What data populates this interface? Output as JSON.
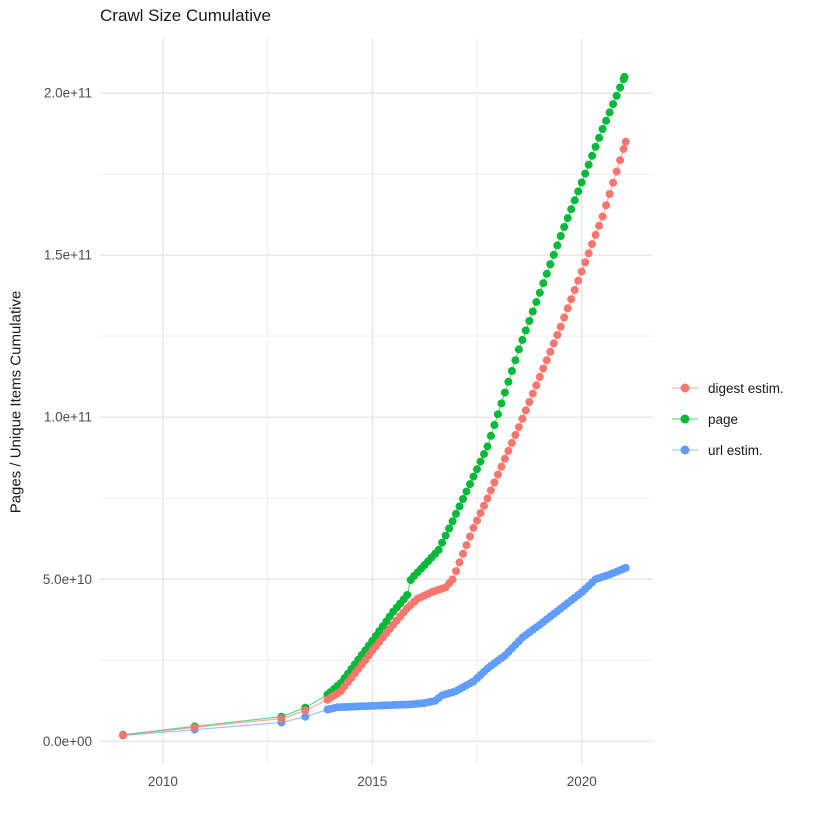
{
  "style": {
    "background": "#FFFFFF",
    "grid_major": "#E3E3E3",
    "grid_minor": "#EFEFEF",
    "axis_text_color": "#4D4D4D",
    "title_text_color": "#1A1A1A"
  },
  "chart_data": {
    "type": "scatter",
    "title": "Crawl Size Cumulative",
    "xlabel": "",
    "ylabel": "Pages / Unique Items Cumulative",
    "grid": true,
    "legend_position": "right",
    "x_ticks": [
      2010,
      2015,
      2020
    ],
    "x_tick_labels": [
      "2010",
      "2015",
      "2020"
    ],
    "x_minor_ticks": [
      2012.5,
      2017.5
    ],
    "y_ticks": [
      0,
      50000000000.0,
      100000000000.0,
      150000000000.0,
      200000000000.0
    ],
    "y_tick_labels": [
      "0.0e+00",
      "5.0e+10",
      "1.0e+11",
      "1.5e+11",
      "2.0e+11"
    ],
    "y_minor_ticks": [
      25000000000.0,
      75000000000.0,
      125000000000.0,
      175000000000.0
    ],
    "xlim": [
      2008.5,
      2021.7
    ],
    "ylim": [
      -7000000000.0,
      217000000000.0
    ],
    "dense_from": 2014.0,
    "dot_interval_years": 0.0833,
    "series": [
      {
        "name": "digest estim.",
        "color": "#F8766D",
        "points": [
          [
            2009.05,
            1900000000.0
          ],
          [
            2010.76,
            4300000000.0
          ],
          [
            2012.83,
            7000000000.0
          ],
          [
            2013.4,
            9500000000.0
          ],
          [
            2013.93,
            12800000000.0
          ],
          [
            2014.25,
            15500000000.0
          ],
          [
            2014.83,
            25000000000.0
          ],
          [
            2015.0,
            28000000000.0
          ],
          [
            2015.5,
            36000000000.0
          ],
          [
            2015.83,
            41000000000.0
          ],
          [
            2016.08,
            44000000000.0
          ],
          [
            2016.42,
            46000000000.0
          ],
          [
            2016.75,
            47500000000.0
          ],
          [
            2016.92,
            50000000000.0
          ],
          [
            2017.17,
            58000000000.0
          ],
          [
            2017.42,
            66000000000.0
          ],
          [
            2017.75,
            75000000000.0
          ],
          [
            2018.5,
            97000000000.0
          ],
          [
            2019.5,
            128000000000.0
          ],
          [
            2020.5,
            162000000000.0
          ],
          [
            2021.05,
            185000000000.0
          ]
        ]
      },
      {
        "name": "page",
        "color": "#00BA38",
        "points": [
          [
            2009.05,
            2000000000.0
          ],
          [
            2010.76,
            4600000000.0
          ],
          [
            2012.83,
            7600000000.0
          ],
          [
            2013.4,
            10400000000.0
          ],
          [
            2013.93,
            14400000000.0
          ],
          [
            2014.25,
            18000000000.0
          ],
          [
            2014.83,
            28000000000.0
          ],
          [
            2015.0,
            31000000000.0
          ],
          [
            2015.5,
            40000000000.0
          ],
          [
            2015.83,
            45000000000.0
          ],
          [
            2015.92,
            50000000000.0
          ],
          [
            2016.33,
            55500000000.0
          ],
          [
            2016.58,
            59000000000.0
          ],
          [
            2016.92,
            68000000000.0
          ],
          [
            2017.5,
            84000000000.0
          ],
          [
            2017.75,
            91000000000.0
          ],
          [
            2018.5,
            121000000000.0
          ],
          [
            2019.5,
            156000000000.0
          ],
          [
            2020.5,
            189000000000.0
          ],
          [
            2021.02,
            205000000000.0
          ]
        ]
      },
      {
        "name": "url estim.",
        "color": "#619CFF",
        "points": [
          [
            2009.05,
            1800000000.0
          ],
          [
            2010.76,
            3600000000.0
          ],
          [
            2012.83,
            5800000000.0
          ],
          [
            2013.4,
            7600000000.0
          ],
          [
            2013.93,
            9800000000.0
          ],
          [
            2014.17,
            10500000000.0
          ],
          [
            2014.75,
            10800000000.0
          ],
          [
            2015.5,
            11200000000.0
          ],
          [
            2015.92,
            11400000000.0
          ],
          [
            2016.25,
            11800000000.0
          ],
          [
            2016.5,
            12500000000.0
          ],
          [
            2016.67,
            14200000000.0
          ],
          [
            2017.0,
            15500000000.0
          ],
          [
            2017.42,
            18500000000.0
          ],
          [
            2017.75,
            22500000000.0
          ],
          [
            2018.17,
            26500000000.0
          ],
          [
            2018.58,
            32000000000.0
          ],
          [
            2019.0,
            36000000000.0
          ],
          [
            2019.5,
            41000000000.0
          ],
          [
            2020.0,
            46000000000.0
          ],
          [
            2020.33,
            50000000000.0
          ],
          [
            2020.67,
            51500000000.0
          ],
          [
            2021.05,
            53500000000.0
          ]
        ]
      }
    ]
  }
}
